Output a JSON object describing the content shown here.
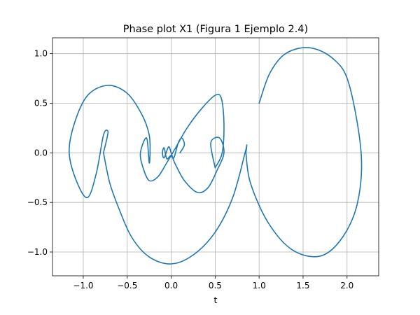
{
  "chart_data": {
    "type": "line",
    "title": "Phase plot X1 (Figura 1 Ejemplo 2.4)",
    "xlabel": "t",
    "ylabel": "",
    "xlim": [
      -1.35,
      2.36
    ],
    "ylim": [
      -1.24,
      1.16
    ],
    "grid": true,
    "xticks": [
      -1.0,
      -0.5,
      0.0,
      0.5,
      1.0,
      1.5,
      2.0
    ],
    "xtick_labels": [
      "−1.0",
      "−0.5",
      "0.0",
      "0.5",
      "1.0",
      "1.5",
      "2.0"
    ],
    "yticks": [
      -1.0,
      -0.5,
      0.0,
      0.5,
      1.0
    ],
    "ytick_labels": [
      "−1.0",
      "−0.5",
      "0.0",
      "0.5",
      "1.0"
    ],
    "series": [
      {
        "color": "#1f77b4",
        "x": [
          1.0,
          1.12,
          1.3,
          1.57,
          1.84,
          2.02,
          2.16,
          2.12,
          1.95,
          1.7,
          1.38,
          1.1,
          0.9,
          0.85
        ],
        "y": [
          0.5,
          0.8,
          1.0,
          1.06,
          0.95,
          0.7,
          0.0,
          -0.5,
          -0.85,
          -1.04,
          -0.98,
          -0.7,
          -0.3,
          0.0
        ]
      },
      {
        "color": "#1f77b4",
        "x": [
          0.85,
          0.86,
          0.84,
          0.7,
          0.5,
          0.25,
          0.0,
          -0.25,
          -0.45,
          -0.6,
          -0.7,
          -0.77
        ],
        "y": [
          0.0,
          0.08,
          0.0,
          -0.45,
          -0.8,
          -1.03,
          -1.12,
          -1.05,
          -0.85,
          -0.55,
          -0.3,
          0.0
        ]
      },
      {
        "color": "#1f77b4",
        "x": [
          -0.77,
          -0.73,
          -0.72,
          -0.77,
          -0.85,
          -0.95,
          -1.07,
          -1.16,
          -1.1,
          -0.95,
          -0.72,
          -0.5,
          -0.33,
          -0.25,
          -0.24
        ],
        "y": [
          0.0,
          0.15,
          0.22,
          0.18,
          -0.2,
          -0.45,
          -0.3,
          0.0,
          0.3,
          0.58,
          0.68,
          0.6,
          0.38,
          0.18,
          0.0
        ]
      },
      {
        "color": "#1f77b4",
        "x": [
          -0.24,
          -0.25,
          -0.28,
          -0.35,
          -0.32,
          -0.25,
          -0.15,
          -0.05,
          0.05,
          0.18,
          0.35,
          0.5,
          0.57,
          0.6,
          0.58,
          0.5
        ],
        "y": [
          0.0,
          -0.1,
          0.15,
          0.0,
          -0.15,
          -0.28,
          -0.24,
          -0.1,
          0.05,
          0.25,
          0.45,
          0.58,
          0.55,
          0.3,
          0.0,
          -0.15
        ]
      },
      {
        "color": "#1f77b4",
        "x": [
          0.5,
          0.45,
          0.55,
          0.6,
          0.52,
          0.42,
          0.3,
          0.15,
          0.05,
          0.0,
          -0.05,
          -0.08,
          -0.1,
          -0.08,
          -0.03,
          0.0,
          0.03,
          0.08,
          0.12,
          0.15,
          0.1
        ],
        "y": [
          -0.15,
          0.1,
          0.15,
          0.0,
          -0.18,
          -0.35,
          -0.4,
          -0.28,
          -0.12,
          -0.03,
          -0.06,
          0.05,
          0.0,
          -0.05,
          0.06,
          0.0,
          -0.05,
          0.1,
          0.15,
          0.08,
          0.0
        ]
      }
    ]
  }
}
